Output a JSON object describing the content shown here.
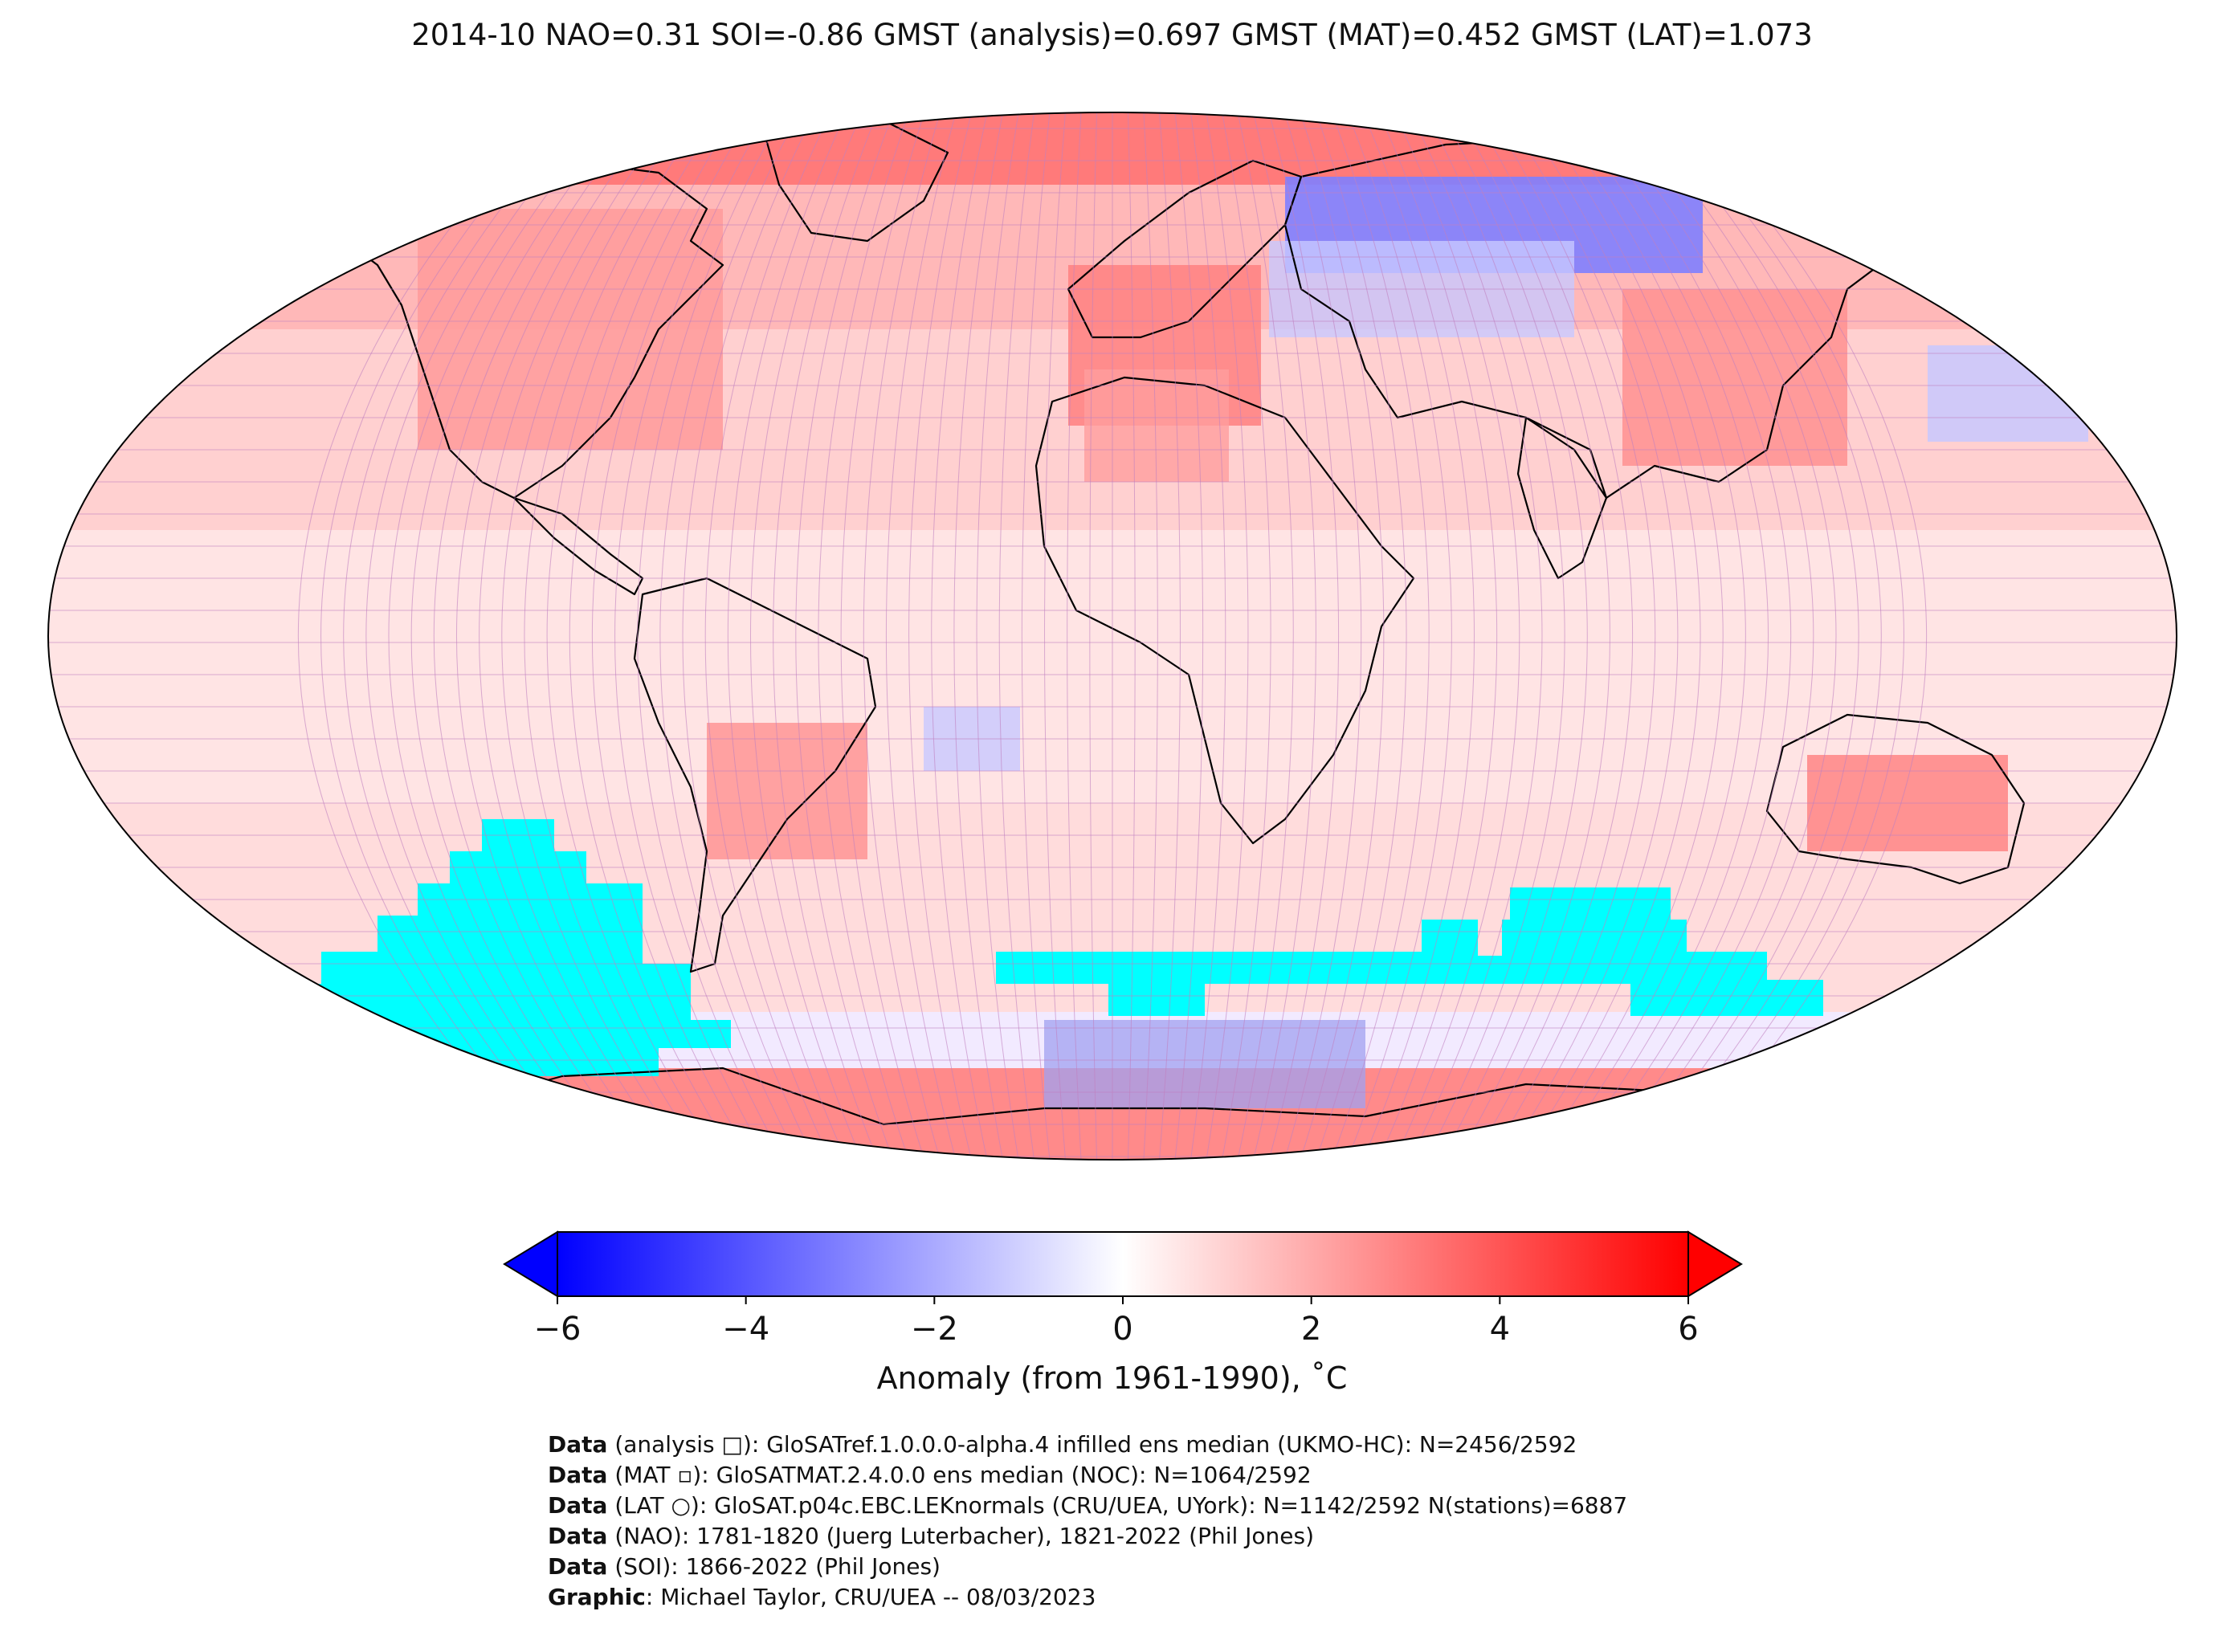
{
  "title": "2014-10 NAO=0.31 SOI=-0.86 GMST (analysis)=0.697 GMST (MAT)=0.452 GMST (LAT)=1.073",
  "colorbar": {
    "label": "Anomaly (from 1961-1990), ˚C",
    "ticks": [
      "−6",
      "−4",
      "−2",
      "0",
      "2",
      "4",
      "6"
    ],
    "tick_values": [
      -6,
      -4,
      -2,
      0,
      2,
      4,
      6
    ],
    "range": [
      -6,
      6
    ],
    "colors": {
      "low": "#0000ff",
      "mid": "#ffffff",
      "high": "#ff0000"
    }
  },
  "colors": {
    "sea_ice_mask": "#00ffff",
    "grid_lines": "#c080c0",
    "coastline": "#000000"
  },
  "credits": [
    {
      "bold": "Data",
      "text": " (analysis □): GloSATref.1.0.0.0-alpha.4 infilled ens median (UKMO-HC): N=2456/2592"
    },
    {
      "bold": "Data",
      "text": " (MAT ▫): GloSATMAT.2.4.0.0 ens median (NOC): N=1064/2592"
    },
    {
      "bold": "Data",
      "text": " (LAT ○): GloSAT.p04c.EBC.LEKnormals (CRU/UEA, UYork): N=1142/2592 N(stations)=6887"
    },
    {
      "bold": "Data",
      "text": " (NAO): 1781-1820 (Juerg Luterbacher), 1821-2022 (Phil Jones)"
    },
    {
      "bold": "Data",
      "text": " (SOI): 1866-2022 (Phil Jones)"
    },
    {
      "bold": "Graphic",
      "text": ": Michael Taylor, CRU/UEA -- 08/03/2023"
    }
  ]
}
